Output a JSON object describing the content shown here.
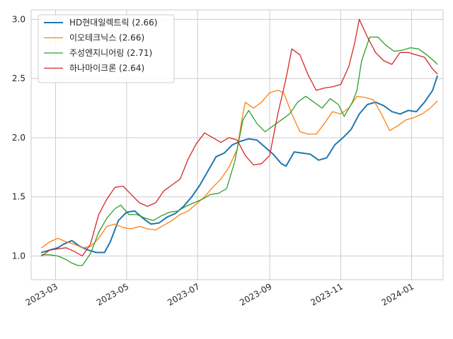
{
  "chart_data": {
    "type": "line",
    "title": "",
    "xlabel": "",
    "ylabel": "",
    "xlim": [
      "2023-02-08",
      "2024-01-28"
    ],
    "ylim": [
      0.8,
      3.08
    ],
    "grid": true,
    "legend_position": "top-left",
    "x_ticks": [
      {
        "date": "2023-03-01",
        "label": "2023-03"
      },
      {
        "date": "2023-05-01",
        "label": "2023-05"
      },
      {
        "date": "2023-07-01",
        "label": "2023-07"
      },
      {
        "date": "2023-09-01",
        "label": "2023-09"
      },
      {
        "date": "2023-11-01",
        "label": "2023-11"
      },
      {
        "date": "2024-01-01",
        "label": "2024-01"
      }
    ],
    "y_ticks": [
      {
        "value": 1.0,
        "label": "1.0"
      },
      {
        "value": 1.5,
        "label": "1.5"
      },
      {
        "value": 2.0,
        "label": "2.0"
      },
      {
        "value": 2.5,
        "label": "2.5"
      },
      {
        "value": 3.0,
        "label": "3.0"
      }
    ],
    "series": [
      {
        "name": "HD현대일렉트릭 (2.66)",
        "color": "#1f77b4",
        "points": [
          [
            "2023-02-17",
            1.03
          ],
          [
            "2023-02-24",
            1.05
          ],
          [
            "2023-03-03",
            1.07
          ],
          [
            "2023-03-08",
            1.1
          ],
          [
            "2023-03-15",
            1.13
          ],
          [
            "2023-03-22",
            1.08
          ],
          [
            "2023-03-29",
            1.05
          ],
          [
            "2023-04-05",
            1.03
          ],
          [
            "2023-04-12",
            1.03
          ],
          [
            "2023-04-17",
            1.12
          ],
          [
            "2023-04-24",
            1.3
          ],
          [
            "2023-05-01",
            1.37
          ],
          [
            "2023-05-08",
            1.38
          ],
          [
            "2023-05-15",
            1.32
          ],
          [
            "2023-05-22",
            1.27
          ],
          [
            "2023-05-29",
            1.28
          ],
          [
            "2023-06-05",
            1.33
          ],
          [
            "2023-06-12",
            1.36
          ],
          [
            "2023-06-19",
            1.42
          ],
          [
            "2023-06-26",
            1.5
          ],
          [
            "2023-07-03",
            1.6
          ],
          [
            "2023-07-10",
            1.72
          ],
          [
            "2023-07-17",
            1.84
          ],
          [
            "2023-07-24",
            1.87
          ],
          [
            "2023-07-31",
            1.94
          ],
          [
            "2023-08-07",
            1.97
          ],
          [
            "2023-08-14",
            1.99
          ],
          [
            "2023-08-21",
            1.98
          ],
          [
            "2023-08-28",
            1.92
          ],
          [
            "2023-09-04",
            1.86
          ],
          [
            "2023-09-11",
            1.78
          ],
          [
            "2023-09-15",
            1.76
          ],
          [
            "2023-09-22",
            1.88
          ],
          [
            "2023-09-29",
            1.87
          ],
          [
            "2023-10-06",
            1.86
          ],
          [
            "2023-10-13",
            1.81
          ],
          [
            "2023-10-20",
            1.83
          ],
          [
            "2023-10-27",
            1.94
          ],
          [
            "2023-11-03",
            2.0
          ],
          [
            "2023-11-10",
            2.07
          ],
          [
            "2023-11-17",
            2.2
          ],
          [
            "2023-11-24",
            2.28
          ],
          [
            "2023-12-01",
            2.3
          ],
          [
            "2023-12-08",
            2.27
          ],
          [
            "2023-12-15",
            2.22
          ],
          [
            "2023-12-22",
            2.2
          ],
          [
            "2023-12-29",
            2.23
          ],
          [
            "2024-01-05",
            2.22
          ],
          [
            "2024-01-12",
            2.3
          ],
          [
            "2024-01-19",
            2.4
          ],
          [
            "2024-01-23",
            2.52
          ]
        ]
      },
      {
        "name": "이오테크닉스 (2.66)",
        "color": "#ff7f0e",
        "points": [
          [
            "2023-02-17",
            1.07
          ],
          [
            "2023-02-24",
            1.12
          ],
          [
            "2023-03-03",
            1.15
          ],
          [
            "2023-03-10",
            1.12
          ],
          [
            "2023-03-17",
            1.1
          ],
          [
            "2023-03-24",
            1.07
          ],
          [
            "2023-03-31",
            1.08
          ],
          [
            "2023-04-07",
            1.15
          ],
          [
            "2023-04-14",
            1.25
          ],
          [
            "2023-04-21",
            1.27
          ],
          [
            "2023-04-28",
            1.24
          ],
          [
            "2023-05-05",
            1.23
          ],
          [
            "2023-05-12",
            1.25
          ],
          [
            "2023-05-19",
            1.23
          ],
          [
            "2023-05-26",
            1.22
          ],
          [
            "2023-06-02",
            1.26
          ],
          [
            "2023-06-09",
            1.3
          ],
          [
            "2023-06-16",
            1.35
          ],
          [
            "2023-06-23",
            1.38
          ],
          [
            "2023-06-30",
            1.44
          ],
          [
            "2023-07-07",
            1.5
          ],
          [
            "2023-07-14",
            1.58
          ],
          [
            "2023-07-21",
            1.65
          ],
          [
            "2023-07-28",
            1.75
          ],
          [
            "2023-08-04",
            1.9
          ],
          [
            "2023-08-08",
            2.15
          ],
          [
            "2023-08-11",
            2.3
          ],
          [
            "2023-08-18",
            2.25
          ],
          [
            "2023-08-25",
            2.3
          ],
          [
            "2023-09-01",
            2.38
          ],
          [
            "2023-09-08",
            2.4
          ],
          [
            "2023-09-13",
            2.38
          ],
          [
            "2023-09-20",
            2.2
          ],
          [
            "2023-09-27",
            2.05
          ],
          [
            "2023-10-04",
            2.03
          ],
          [
            "2023-10-11",
            2.03
          ],
          [
            "2023-10-18",
            2.12
          ],
          [
            "2023-10-25",
            2.22
          ],
          [
            "2023-11-01",
            2.2
          ],
          [
            "2023-11-08",
            2.25
          ],
          [
            "2023-11-15",
            2.35
          ],
          [
            "2023-11-22",
            2.34
          ],
          [
            "2023-11-29",
            2.32
          ],
          [
            "2023-12-06",
            2.2
          ],
          [
            "2023-12-13",
            2.06
          ],
          [
            "2023-12-20",
            2.1
          ],
          [
            "2023-12-27",
            2.15
          ],
          [
            "2024-01-03",
            2.17
          ],
          [
            "2024-01-10",
            2.2
          ],
          [
            "2024-01-17",
            2.25
          ],
          [
            "2024-01-23",
            2.31
          ]
        ]
      },
      {
        "name": "주성엔지니어링 (2.71)",
        "color": "#2ca02c",
        "points": [
          [
            "2023-02-17",
            1.01
          ],
          [
            "2023-02-24",
            1.01
          ],
          [
            "2023-03-03",
            1.0
          ],
          [
            "2023-03-10",
            0.97
          ],
          [
            "2023-03-15",
            0.94
          ],
          [
            "2023-03-20",
            0.92
          ],
          [
            "2023-03-24",
            0.92
          ],
          [
            "2023-03-31",
            1.02
          ],
          [
            "2023-04-07",
            1.2
          ],
          [
            "2023-04-14",
            1.32
          ],
          [
            "2023-04-21",
            1.4
          ],
          [
            "2023-04-26",
            1.43
          ],
          [
            "2023-05-03",
            1.35
          ],
          [
            "2023-05-10",
            1.35
          ],
          [
            "2023-05-17",
            1.32
          ],
          [
            "2023-05-24",
            1.3
          ],
          [
            "2023-05-31",
            1.34
          ],
          [
            "2023-06-07",
            1.37
          ],
          [
            "2023-06-14",
            1.38
          ],
          [
            "2023-06-21",
            1.42
          ],
          [
            "2023-06-28",
            1.45
          ],
          [
            "2023-07-05",
            1.48
          ],
          [
            "2023-07-12",
            1.52
          ],
          [
            "2023-07-19",
            1.53
          ],
          [
            "2023-07-26",
            1.57
          ],
          [
            "2023-08-02",
            1.8
          ],
          [
            "2023-08-09",
            2.15
          ],
          [
            "2023-08-14",
            2.23
          ],
          [
            "2023-08-21",
            2.12
          ],
          [
            "2023-08-28",
            2.05
          ],
          [
            "2023-09-04",
            2.1
          ],
          [
            "2023-09-11",
            2.15
          ],
          [
            "2023-09-18",
            2.2
          ],
          [
            "2023-09-25",
            2.3
          ],
          [
            "2023-10-02",
            2.35
          ],
          [
            "2023-10-09",
            2.3
          ],
          [
            "2023-10-16",
            2.25
          ],
          [
            "2023-10-23",
            2.33
          ],
          [
            "2023-10-30",
            2.28
          ],
          [
            "2023-11-04",
            2.18
          ],
          [
            "2023-11-11",
            2.3
          ],
          [
            "2023-11-15",
            2.4
          ],
          [
            "2023-11-19",
            2.65
          ],
          [
            "2023-11-26",
            2.85
          ],
          [
            "2023-12-03",
            2.85
          ],
          [
            "2023-12-10",
            2.78
          ],
          [
            "2023-12-17",
            2.73
          ],
          [
            "2023-12-24",
            2.74
          ],
          [
            "2023-12-31",
            2.76
          ],
          [
            "2024-01-07",
            2.75
          ],
          [
            "2024-01-14",
            2.7
          ],
          [
            "2024-01-20",
            2.65
          ],
          [
            "2024-01-23",
            2.62
          ]
        ]
      },
      {
        "name": "하나마이크론 (2.64)",
        "color": "#d62728",
        "points": [
          [
            "2023-02-17",
            1.0
          ],
          [
            "2023-02-24",
            1.05
          ],
          [
            "2023-03-03",
            1.06
          ],
          [
            "2023-03-10",
            1.07
          ],
          [
            "2023-03-17",
            1.04
          ],
          [
            "2023-03-24",
            1.0
          ],
          [
            "2023-03-31",
            1.1
          ],
          [
            "2023-04-07",
            1.35
          ],
          [
            "2023-04-14",
            1.48
          ],
          [
            "2023-04-21",
            1.58
          ],
          [
            "2023-04-28",
            1.59
          ],
          [
            "2023-05-05",
            1.52
          ],
          [
            "2023-05-12",
            1.45
          ],
          [
            "2023-05-19",
            1.42
          ],
          [
            "2023-05-26",
            1.45
          ],
          [
            "2023-06-02",
            1.55
          ],
          [
            "2023-06-09",
            1.6
          ],
          [
            "2023-06-16",
            1.65
          ],
          [
            "2023-06-23",
            1.82
          ],
          [
            "2023-06-30",
            1.95
          ],
          [
            "2023-07-07",
            2.04
          ],
          [
            "2023-07-14",
            2.0
          ],
          [
            "2023-07-21",
            1.96
          ],
          [
            "2023-07-28",
            2.0
          ],
          [
            "2023-08-04",
            1.98
          ],
          [
            "2023-08-11",
            1.85
          ],
          [
            "2023-08-18",
            1.77
          ],
          [
            "2023-08-25",
            1.78
          ],
          [
            "2023-09-01",
            1.85
          ],
          [
            "2023-09-08",
            2.2
          ],
          [
            "2023-09-15",
            2.5
          ],
          [
            "2023-09-20",
            2.75
          ],
          [
            "2023-09-27",
            2.7
          ],
          [
            "2023-10-04",
            2.53
          ],
          [
            "2023-10-11",
            2.4
          ],
          [
            "2023-10-18",
            2.42
          ],
          [
            "2023-10-25",
            2.43
          ],
          [
            "2023-11-01",
            2.45
          ],
          [
            "2023-11-08",
            2.6
          ],
          [
            "2023-11-13",
            2.8
          ],
          [
            "2023-11-17",
            3.0
          ],
          [
            "2023-11-24",
            2.85
          ],
          [
            "2023-12-01",
            2.72
          ],
          [
            "2023-12-08",
            2.65
          ],
          [
            "2023-12-15",
            2.62
          ],
          [
            "2023-12-22",
            2.72
          ],
          [
            "2023-12-29",
            2.72
          ],
          [
            "2024-01-05",
            2.7
          ],
          [
            "2024-01-12",
            2.68
          ],
          [
            "2024-01-19",
            2.58
          ],
          [
            "2024-01-23",
            2.54
          ]
        ]
      }
    ]
  }
}
